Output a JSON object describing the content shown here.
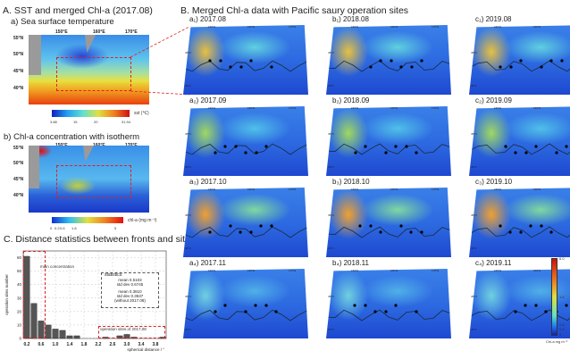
{
  "panel_a": {
    "title": "A. SST and merged Chl-a (2017.08)",
    "sst": {
      "title": "a) Sea surface temperature",
      "lon_ticks": [
        "150°E",
        "160°E",
        "170°E"
      ],
      "lat_ticks": [
        "55°N",
        "50°N",
        "45°N",
        "40°N"
      ],
      "colorbar_label": "sst (℃)",
      "colorbar_ticks": [
        "3.88",
        "15",
        "20",
        "31.94"
      ]
    },
    "chl": {
      "title": "b) Chl-a concentration with isotherm",
      "lon_ticks": [
        "150°E",
        "160°E",
        "170°E"
      ],
      "lat_ticks": [
        "55°N",
        "50°N",
        "45°N",
        "40°N"
      ],
      "colorbar_label": "chl-a (mg m⁻³)",
      "colorbar_ticks": [
        "0",
        "0.2",
        "0.6",
        "1.8",
        "5"
      ]
    }
  },
  "panel_b": {
    "title": "B. Merged Chl-a data with Pacific saury operation sites",
    "map_lon_ticks": [
      "150°E",
      "160°E",
      "170°E"
    ],
    "map_lat_ticks": [
      "45°N",
      "40°N"
    ],
    "maps": [
      [
        "a₁) 2017.08",
        "b₁) 2018.08",
        "c₁) 2019.08"
      ],
      [
        "a₂) 2017.09",
        "b₂) 2018.09",
        "c₂) 2019.09"
      ],
      [
        "a₃) 2017.10",
        "b₃) 2018.10",
        "c₃) 2019.10"
      ],
      [
        "a₄) 2017.11",
        "b₄) 2018.11",
        "c₄) 2019.11"
      ]
    ],
    "colorbar_label": "Chl-a mg m⁻³",
    "colorbar_ticks": [
      "6.0",
      "1.6",
      "0.8",
      "0.4",
      "0"
    ]
  },
  "panel_c": {
    "title": "C. Distance statistics between fronts and sites",
    "annotation_main": "main concentration",
    "annotation_2017": "operation sites of 2017.08",
    "stats": {
      "header": "statistics:",
      "mean_all": "mean 0.5103",
      "std_all": "std dev 0.6745",
      "mean_excl": "mean 0.3810",
      "std_excl": "std dev 0.3537",
      "note": "(without 2017.08)"
    }
  },
  "chart_data": {
    "type": "bar",
    "xlabel": "spherical distance / °",
    "ylabel": "operation sites number",
    "x": [
      0.2,
      0.4,
      0.6,
      0.8,
      1.0,
      1.2,
      1.4,
      1.6,
      1.8,
      2.0,
      2.2,
      2.4,
      2.6,
      2.8,
      3.0,
      3.2,
      3.4,
      3.6,
      3.8,
      4.0
    ],
    "values": [
      61,
      26,
      13,
      10,
      7,
      6,
      2,
      2,
      0,
      0,
      0,
      1,
      0,
      2,
      3,
      1,
      0,
      0,
      0,
      1
    ],
    "x_ticks": [
      "0.2",
      "0.6",
      "1.0",
      "1.4",
      "1.8",
      "2.2",
      "2.6",
      "3.0",
      "3.4",
      "3.8"
    ],
    "y_ticks": [
      "0",
      "10",
      "20",
      "30",
      "40",
      "50",
      "60"
    ],
    "ylim": [
      0,
      65
    ],
    "grid": true
  },
  "colors": {
    "front_box": "#e02020",
    "bar": "#555555",
    "ocean_low": "#1f4fd0",
    "land": "#9a9a9a"
  }
}
